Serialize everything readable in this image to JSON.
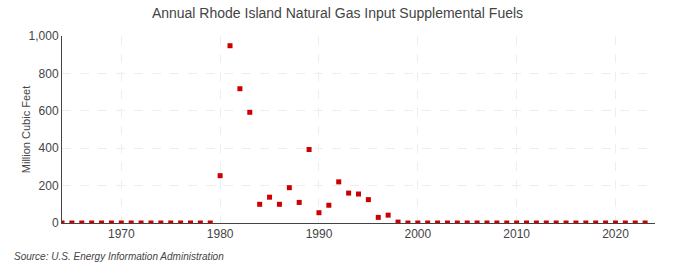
{
  "chart_data": {
    "type": "scatter",
    "title": "Annual Rhode Island Natural Gas Input Supplemental Fuels",
    "y_label": "Million Cubic Feet",
    "source": "Source: U.S. Energy Information Administration",
    "x": [
      1964,
      1965,
      1966,
      1967,
      1968,
      1969,
      1970,
      1971,
      1972,
      1973,
      1974,
      1975,
      1976,
      1977,
      1978,
      1979,
      1980,
      1981,
      1982,
      1983,
      1984,
      1985,
      1986,
      1987,
      1988,
      1989,
      1990,
      1991,
      1992,
      1993,
      1994,
      1995,
      1996,
      1997,
      1998,
      1999,
      2000,
      2001,
      2002,
      2003,
      2004,
      2005,
      2006,
      2007,
      2008,
      2009,
      2010,
      2011,
      2012,
      2013,
      2014,
      2015,
      2016,
      2017,
      2018,
      2019,
      2020,
      2021,
      2022,
      2023
    ],
    "values": [
      0,
      0,
      0,
      0,
      0,
      0,
      0,
      0,
      0,
      0,
      0,
      0,
      0,
      0,
      0,
      0,
      253,
      948,
      718,
      592,
      100,
      138,
      100,
      189,
      110,
      393,
      55,
      95,
      220,
      160,
      155,
      125,
      30,
      42,
      5,
      0,
      0,
      0,
      0,
      0,
      0,
      0,
      0,
      0,
      0,
      0,
      0,
      0,
      0,
      0,
      0,
      0,
      0,
      0,
      0,
      0,
      0,
      0,
      0,
      0
    ],
    "color": "#cc0000",
    "marker": "square",
    "xlim": [
      1964,
      2024
    ],
    "xticks": [
      1970,
      1980,
      1990,
      2000,
      2010,
      2020
    ],
    "ylim": [
      0,
      1000
    ],
    "yticks": [
      0,
      200,
      400,
      600,
      800,
      {
        "value": 1000,
        "label": "1,000"
      }
    ],
    "grid": true
  }
}
